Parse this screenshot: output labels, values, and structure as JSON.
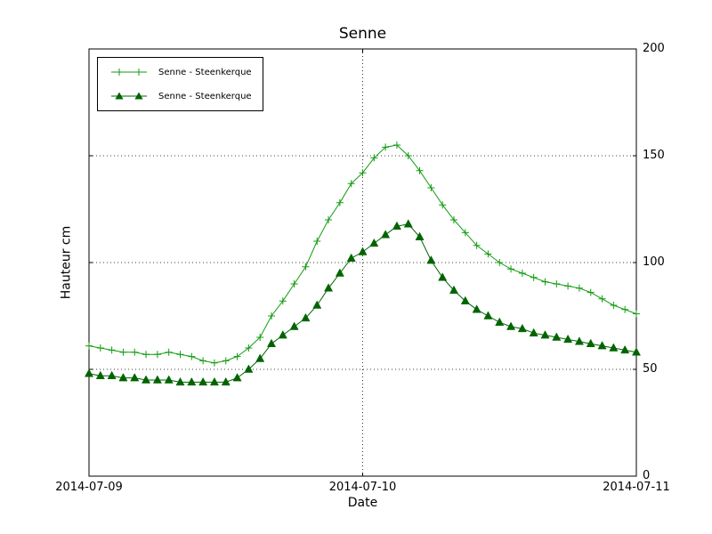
{
  "figure": {
    "background": "#ffffff",
    "frame_color": "#000000",
    "grid_style": "dotted"
  },
  "chart_data": {
    "type": "line",
    "title": "Senne",
    "xlabel": "Date",
    "ylabel": "Hauteur cm",
    "ylim": [
      0,
      200
    ],
    "yticks": [
      0,
      50,
      100,
      150,
      200
    ],
    "xlim": [
      0,
      48
    ],
    "x_unit": "hours since 2014-07-09 00:00",
    "xticks": [
      {
        "pos": 0,
        "label": "2014-07-09"
      },
      {
        "pos": 24,
        "label": "2014-07-10"
      },
      {
        "pos": 48,
        "label": "2014-07-11"
      }
    ],
    "grid": {
      "y_dotted_at": [
        50,
        100,
        150,
        200
      ],
      "x_dotted_at": [
        24
      ]
    },
    "legend": {
      "position": "upper-left"
    },
    "series": [
      {
        "name": "Senne - Steenkerque",
        "marker": "plus",
        "color": "#119b11",
        "x_start": 0,
        "x_step": 1,
        "values": [
          61,
          60,
          59,
          58,
          58,
          57,
          57,
          58,
          57,
          56,
          54,
          53,
          54,
          56,
          60,
          65,
          75,
          82,
          90,
          98,
          110,
          120,
          128,
          137,
          142,
          149,
          154,
          155,
          150,
          143,
          135,
          127,
          120,
          114,
          108,
          104,
          100,
          97,
          95,
          93,
          91,
          90,
          89,
          88,
          86,
          83,
          80,
          78,
          76
        ]
      },
      {
        "name": "Senne - Steenkerque",
        "marker": "triangle",
        "color": "#006400",
        "x_start": 0,
        "x_step": 1,
        "values": [
          48,
          47,
          47,
          46,
          46,
          45,
          45,
          45,
          44,
          44,
          44,
          44,
          44,
          46,
          50,
          55,
          62,
          66,
          70,
          74,
          80,
          88,
          95,
          102,
          105,
          109,
          113,
          117,
          118,
          112,
          101,
          93,
          87,
          82,
          78,
          75,
          72,
          70,
          69,
          67,
          66,
          65,
          64,
          63,
          62,
          61,
          60,
          59,
          58
        ]
      }
    ]
  }
}
